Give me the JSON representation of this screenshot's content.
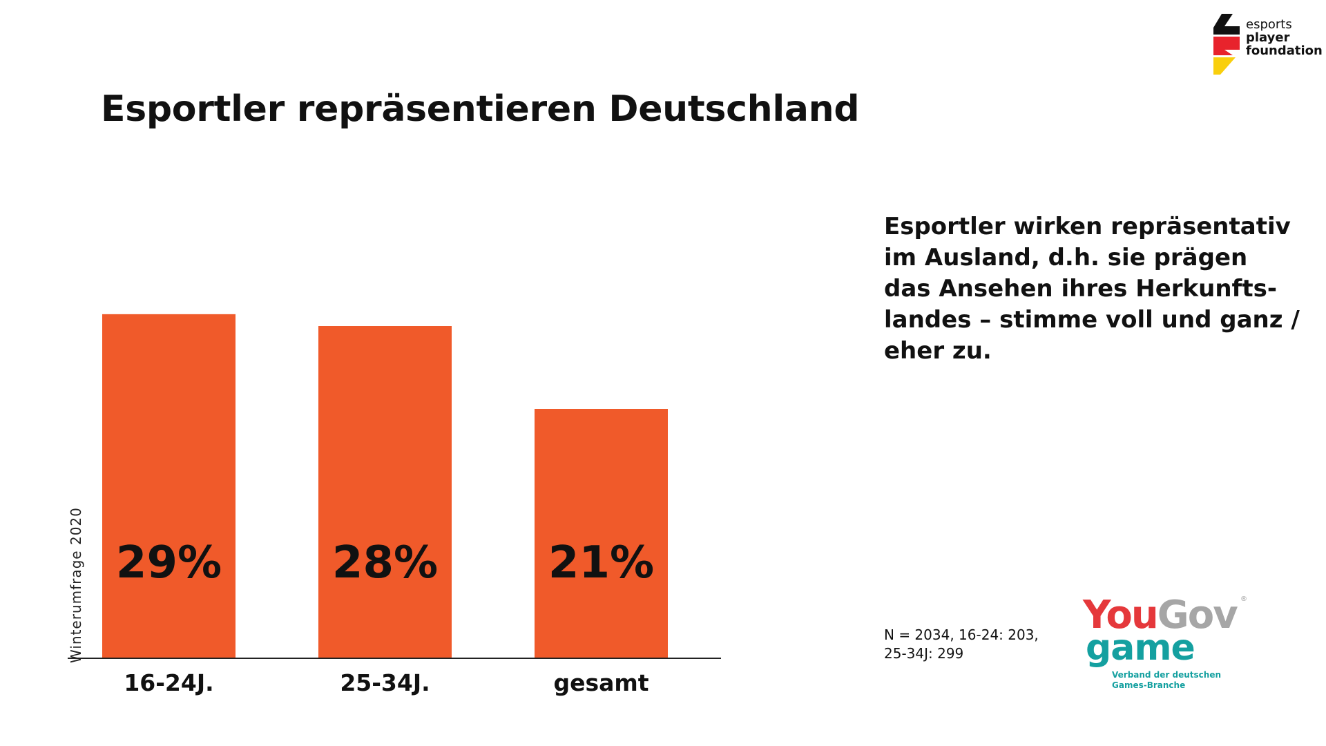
{
  "title": "Esportler repräsentieren Deutschland",
  "brand": {
    "line1": "esports",
    "line2": "player",
    "line3": "foundation",
    "colors": {
      "black": "#111111",
      "red": "#e8232c",
      "gold": "#f9cf0d"
    }
  },
  "side_note": "Winterumfrage 2020",
  "statement": [
    "Esportler wirken repräsentativ",
    "im Ausland,  d.h. sie prägen",
    "das Ansehen ihres Herkunfts-",
    "landes – stimme voll und ganz /",
    "eher zu."
  ],
  "sample_note": [
    "N = 2034, 16-24: 203,",
    "25-34J: 299"
  ],
  "partner_logos": {
    "yougov_you": "You",
    "yougov_gov": "Gov",
    "yougov_reg": "®",
    "game_word": "game",
    "game_sub": [
      "Verband der deutschen",
      "Games-Branche"
    ]
  },
  "chart_data": {
    "type": "bar",
    "categories": [
      "16-24J.",
      "25-34J.",
      "gesamt"
    ],
    "values": [
      29,
      28,
      21
    ],
    "value_labels": [
      "29%",
      "28%",
      "21%"
    ],
    "unit": "%",
    "ylim": [
      0,
      35
    ],
    "grid": false,
    "legend": "none",
    "bar_color": "#f05a2a",
    "axis_color": "#222222"
  }
}
